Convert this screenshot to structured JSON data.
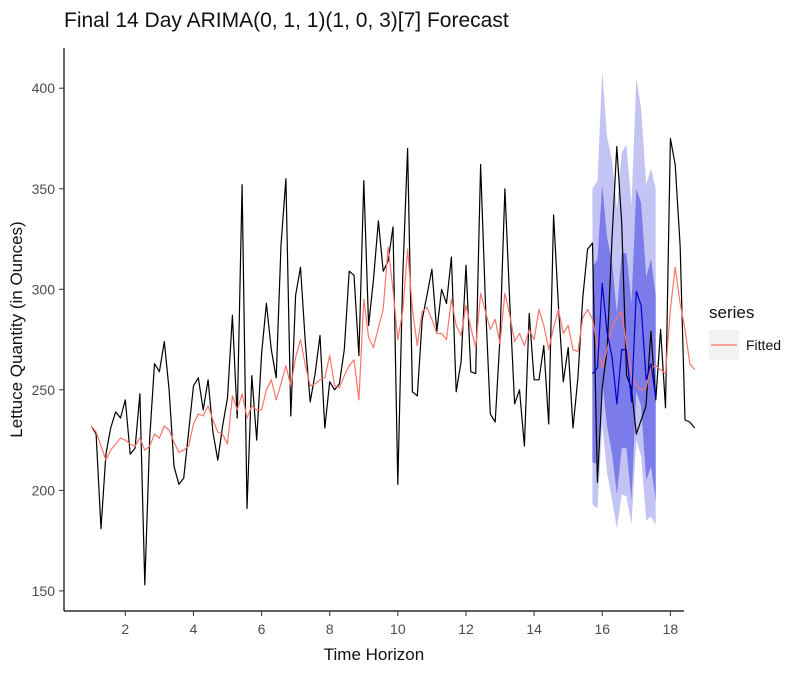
{
  "chart_data": {
    "type": "line",
    "title": "Final 14 Day ARIMA(0, 1, 1)(1, 0, 3)[7] Forecast",
    "xlabel": "Time Horizon",
    "ylabel": "Lettuce Quantity (in Ounces)",
    "xlim": [
      0.2,
      18.4
    ],
    "ylim": [
      140,
      420
    ],
    "xticks": [
      2,
      4,
      6,
      8,
      10,
      12,
      14,
      16,
      18
    ],
    "yticks": [
      150,
      200,
      250,
      300,
      350,
      400
    ],
    "grid": false,
    "legend": {
      "title": "series",
      "position": "right",
      "entries": [
        {
          "label": "Fitted",
          "color": "#f8766d"
        }
      ]
    },
    "colors": {
      "actual": "#000000",
      "fitted": "#f8766d",
      "forecast": "#0000cc",
      "band80": "#7b7bea",
      "band95": "#c4c4f4"
    },
    "series": [
      {
        "role": "actual",
        "x_start": 1.0,
        "x_step": 0.142857,
        "values": [
          232,
          228,
          181,
          218,
          231,
          239,
          236,
          245,
          218,
          221,
          248,
          153,
          226,
          263,
          259,
          274,
          250,
          212,
          203,
          206,
          229,
          252,
          256,
          240,
          255,
          229,
          215,
          232,
          246,
          287,
          236,
          352,
          191,
          257,
          225,
          268,
          293,
          270,
          256,
          322,
          355,
          237,
          297,
          311,
          273,
          244,
          258,
          277,
          231,
          254,
          250,
          253,
          270,
          309,
          307,
          267,
          354,
          282,
          305,
          334,
          309,
          314,
          331,
          203,
          306,
          370,
          249,
          247,
          285,
          297,
          310,
          279,
          300,
          293,
          316,
          249,
          264,
          312,
          259,
          258,
          362,
          294,
          238,
          234,
          276,
          350,
          293,
          243,
          250,
          222,
          288,
          255,
          255,
          272,
          233,
          337,
          292,
          254,
          271,
          231,
          256,
          296,
          320,
          323,
          204,
          251,
          270,
          325,
          371,
          333,
          257,
          251,
          228,
          235,
          242,
          279,
          245,
          280,
          241,
          375,
          362,
          322,
          235,
          234,
          231
        ]
      },
      {
        "role": "fitted",
        "name": "Fitted",
        "x_start": 1.0,
        "x_step": 0.142857,
        "values": [
          232,
          229,
          222,
          215,
          220,
          223,
          226,
          225,
          223,
          222,
          226,
          220,
          222,
          228,
          226,
          232,
          230,
          224,
          219,
          220,
          222,
          233,
          238,
          237,
          242,
          235,
          229,
          228,
          223,
          247,
          240,
          248,
          236,
          242,
          240,
          240,
          250,
          255,
          245,
          253,
          262,
          252,
          266,
          275,
          262,
          252,
          253,
          255,
          256,
          267,
          252,
          251,
          257,
          262,
          265,
          245,
          295,
          276,
          271,
          281,
          290,
          321,
          300,
          275,
          289,
          320,
          290,
          272,
          289,
          291,
          285,
          278,
          278,
          275,
          295,
          282,
          277,
          292,
          281,
          271,
          298,
          289,
          280,
          285,
          273,
          298,
          287,
          274,
          278,
          272,
          280,
          275,
          290,
          282,
          270,
          281,
          290,
          278,
          282,
          270,
          269,
          286,
          290,
          285,
          272,
          261,
          270,
          281,
          286,
          289,
          272,
          258,
          252,
          250,
          251,
          261,
          262,
          260,
          258,
          290,
          311,
          293,
          280,
          263,
          260
        ]
      },
      {
        "role": "forecast",
        "x": [
          15.71,
          15.86,
          16.0,
          16.14,
          16.29,
          16.43,
          16.57,
          16.71,
          16.86,
          17.0,
          17.14,
          17.29,
          17.43,
          17.57
        ],
        "values": [
          258,
          261,
          303,
          279,
          266,
          243,
          270,
          270,
          244,
          299,
          292,
          255,
          263,
          246
        ],
        "lo80": [
          214,
          213,
          255,
          232,
          218,
          198,
          221,
          221,
          195,
          249,
          242,
          205,
          212,
          195
        ],
        "hi80": [
          311,
          315,
          352,
          326,
          313,
          288,
          318,
          318,
          293,
          350,
          343,
          306,
          315,
          297
        ],
        "lo95": [
          193,
          191,
          233,
          209,
          195,
          181,
          198,
          197,
          183,
          225,
          217,
          185,
          187,
          183
        ],
        "hi95": [
          350,
          354,
          409,
          376,
          364,
          340,
          368,
          372,
          342,
          405,
          390,
          352,
          360,
          350
        ]
      }
    ]
  }
}
